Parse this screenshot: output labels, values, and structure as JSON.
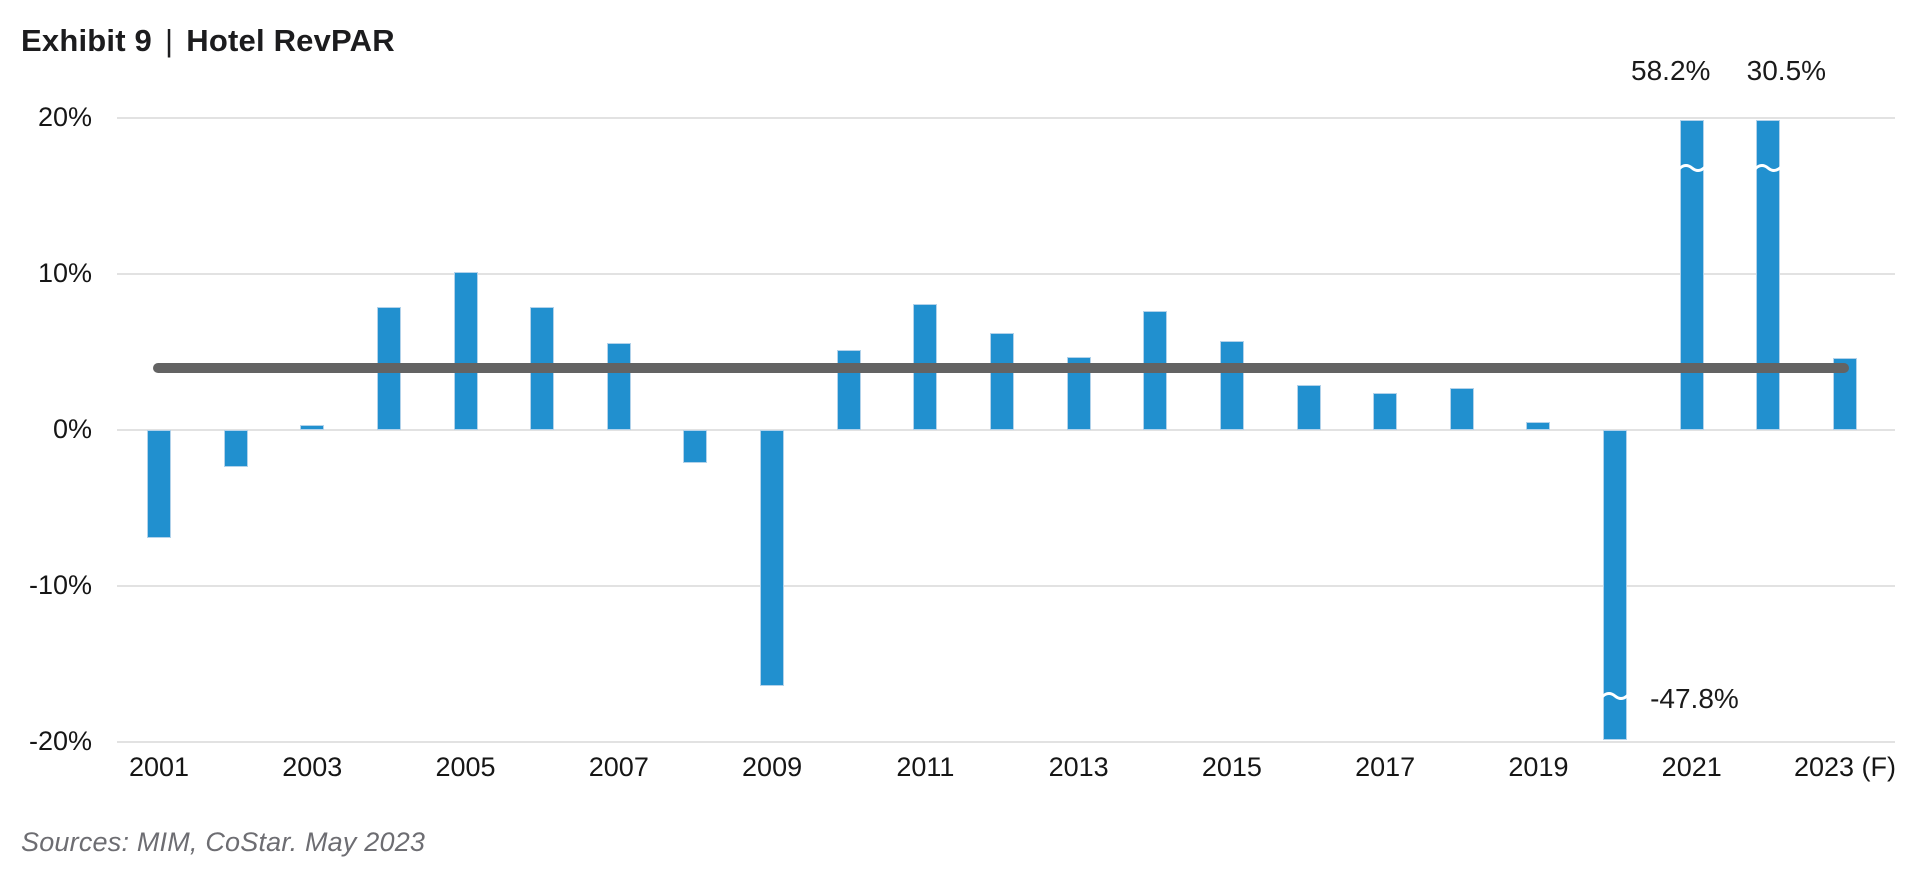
{
  "title": {
    "prefix": "Exhibit 9",
    "separator": "|",
    "name": "Hotel RevPAR"
  },
  "source_note": "Sources: MIM, CoStar. May 2023",
  "colors": {
    "bar": "#2190CF",
    "bar_edge": "#B2D2EA",
    "average_line": "#636363",
    "gridline": "#E2E2E2",
    "axis_text": "#161616",
    "annotation_text": "#1A1A1A",
    "title_text": "#1C1C1E",
    "source_text": "#6D6D72",
    "background": "#FFFFFF",
    "break_mark": "#FFFFFF"
  },
  "chart_data": {
    "type": "bar",
    "title": "Exhibit 9 | Hotel RevPAR",
    "ylabel": "",
    "xlabel": "",
    "categories": [
      "2001",
      "2002",
      "2003",
      "2004",
      "2005",
      "2006",
      "2007",
      "2008",
      "2009",
      "2010",
      "2011",
      "2012",
      "2013",
      "2014",
      "2015",
      "2016",
      "2017",
      "2018",
      "2019",
      "2020",
      "2021",
      "2022",
      "2023 (F)"
    ],
    "values": [
      -6.9,
      -2.4,
      0.3,
      7.9,
      10.1,
      7.9,
      5.6,
      -2.1,
      -16.4,
      5.1,
      8.1,
      6.2,
      4.7,
      7.6,
      5.7,
      2.9,
      2.4,
      2.7,
      0.5,
      -47.8,
      58.2,
      30.5,
      4.6
    ],
    "units": "%",
    "ylim": [
      -20,
      20
    ],
    "display_clip": {
      "max": 20,
      "min": -20,
      "note": "bars beyond axis range are clipped with a white wavy break mark and labeled"
    },
    "yticks": [
      {
        "label": "20%",
        "value": 20
      },
      {
        "label": "10%",
        "value": 10
      },
      {
        "label": "0%",
        "value": 0
      },
      {
        "label": "-10%",
        "value": -10
      },
      {
        "label": "-20%",
        "value": -20
      }
    ],
    "xtick_labels": [
      "2001",
      "2003",
      "2005",
      "2007",
      "2009",
      "2011",
      "2013",
      "2015",
      "2017",
      "2019",
      "2021",
      "2023 (F)"
    ],
    "grid": "horizontal",
    "average_line": {
      "value": 4.0,
      "span": "2001 to 2023 (F)"
    },
    "break_annotations": [
      {
        "category": "2021",
        "label": "58.2%",
        "position": "above",
        "dx": -21
      },
      {
        "category": "2022",
        "label": "30.5%",
        "position": "above",
        "dx": 18
      },
      {
        "category": "2020",
        "label": "-47.8%",
        "position": "right-of-break",
        "dx": 35
      }
    ]
  }
}
